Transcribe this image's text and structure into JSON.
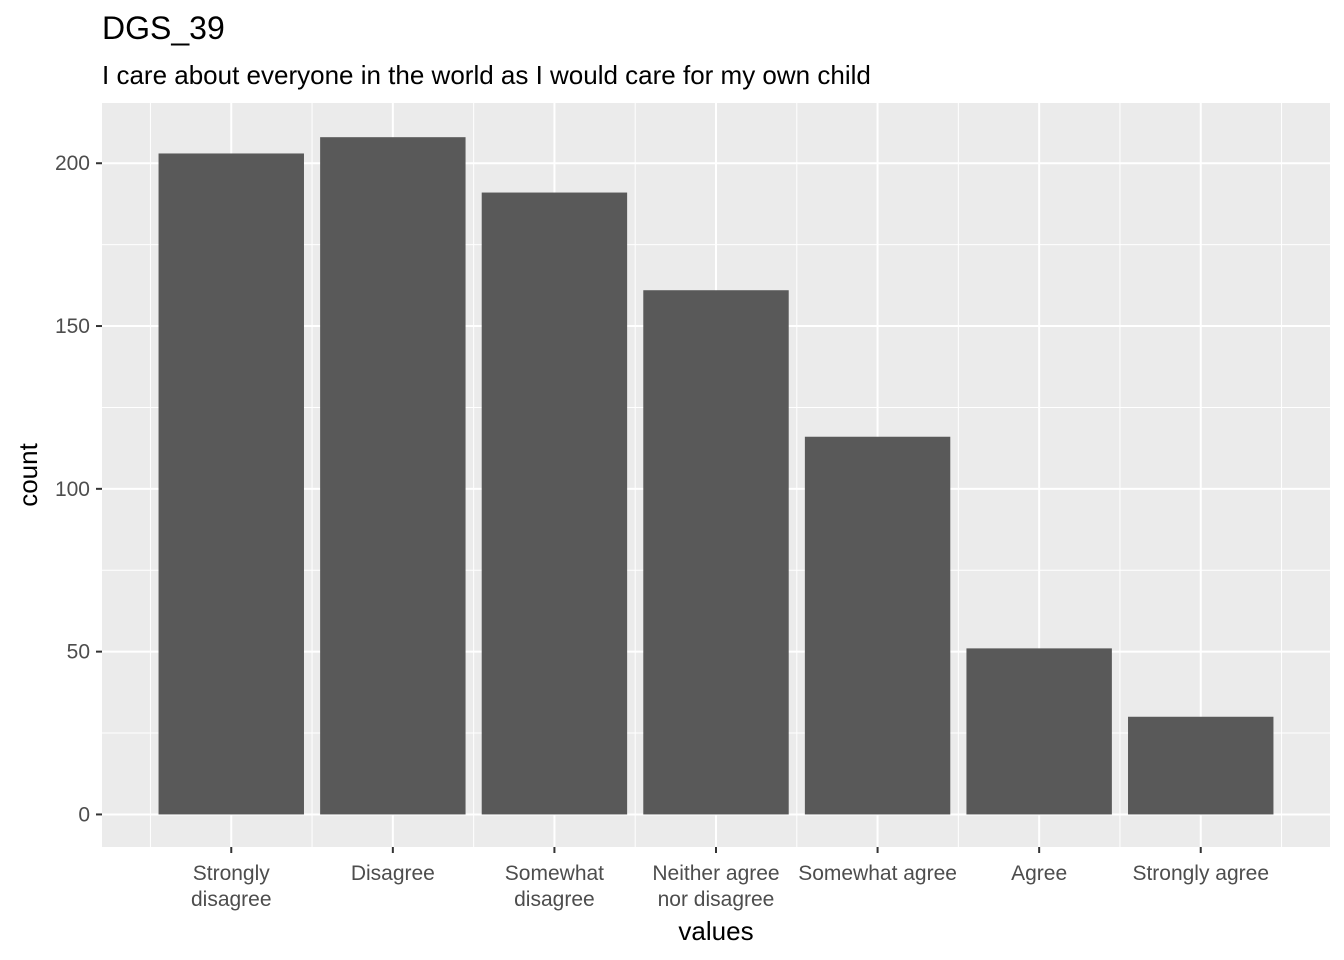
{
  "chart_data": {
    "type": "bar",
    "title": "DGS_39",
    "subtitle": "I care about everyone in the world as I would care for my own child",
    "xlabel": "values",
    "ylabel": "count",
    "categories": [
      [
        "Strongly",
        "disagree"
      ],
      [
        "Disagree"
      ],
      [
        "Somewhat",
        "disagree"
      ],
      [
        "Neither agree",
        "nor disagree"
      ],
      [
        "Somewhat agree"
      ],
      [
        "Agree"
      ],
      [
        "Strongly agree"
      ]
    ],
    "values": [
      203,
      208,
      191,
      161,
      116,
      51,
      30
    ],
    "ylim": [
      -10,
      218.5
    ],
    "yticks": [
      0,
      50,
      100,
      150,
      200
    ],
    "grid": true,
    "colors": {
      "panel": "#ebebeb",
      "grid": "#ffffff",
      "bar": "#595959",
      "tick": "#333333"
    }
  }
}
